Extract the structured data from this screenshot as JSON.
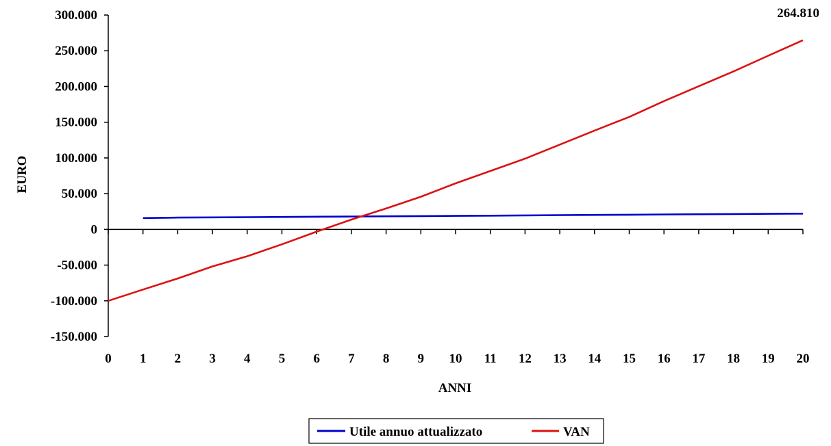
{
  "chart_data": {
    "type": "line",
    "xlabel": "ANNI",
    "ylabel": "EURO",
    "xlim": [
      0,
      20
    ],
    "ylim": [
      -150000,
      300000
    ],
    "x_ticks": [
      "0",
      "1",
      "2",
      "3",
      "4",
      "5",
      "6",
      "7",
      "8",
      "9",
      "10",
      "11",
      "12",
      "13",
      "14",
      "15",
      "16",
      "17",
      "18",
      "19",
      "20"
    ],
    "y_ticks": [
      "-150.000",
      "-100.000",
      "-50.000",
      "0",
      "50.000",
      "100.000",
      "150.000",
      "200.000",
      "250.000",
      "300.000"
    ],
    "y_tick_values": [
      -150000,
      -100000,
      -50000,
      0,
      50000,
      100000,
      150000,
      200000,
      250000,
      300000
    ],
    "grid": false,
    "legend_position": "bottom",
    "annotations": [
      {
        "text": "264.810",
        "x": 20,
        "y": 264810
      }
    ],
    "series": [
      {
        "name": "Utile annuo attualizzato",
        "color": "#0000cc",
        "x": [
          1,
          2,
          3,
          4,
          5,
          6,
          7,
          8,
          9,
          10,
          11,
          12,
          13,
          14,
          15,
          16,
          17,
          18,
          19,
          20
        ],
        "values": [
          15800,
          16500,
          16800,
          17100,
          17400,
          17700,
          18000,
          18300,
          18600,
          18900,
          19200,
          19600,
          19900,
          20200,
          20500,
          20900,
          21200,
          21500,
          21800,
          22100
        ]
      },
      {
        "name": "VAN",
        "color": "#dd1111",
        "x": [
          0,
          1,
          2,
          3,
          4,
          5,
          6,
          7,
          8,
          9,
          10,
          11,
          12,
          13,
          14,
          15,
          16,
          17,
          18,
          19,
          20
        ],
        "values": [
          -100000,
          -84200,
          -68700,
          -51900,
          -37600,
          -20900,
          -3100,
          13700,
          29300,
          45700,
          64500,
          81700,
          99000,
          118700,
          138300,
          157400,
          179600,
          200300,
          221100,
          243000,
          264810
        ]
      }
    ]
  }
}
